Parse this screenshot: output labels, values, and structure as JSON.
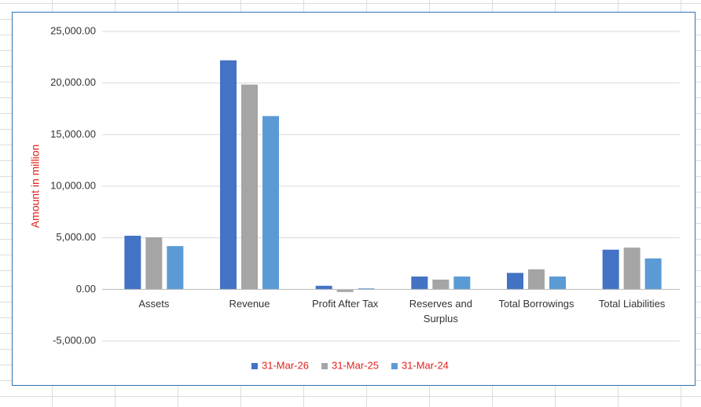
{
  "chart_data": {
    "type": "bar",
    "y_label": "Amount in million",
    "categories": [
      "Assets",
      "Revenue",
      "Profit After Tax",
      "Reserves and Surplus",
      "Total Borrowings",
      "Total Liabilities"
    ],
    "series": [
      {
        "name": "31-Mar-26",
        "color": "#4472c4",
        "values": [
          5200,
          22200,
          350,
          1250,
          1600,
          3850
        ]
      },
      {
        "name": "31-Mar-25",
        "color": "#a5a5a5",
        "values": [
          5050,
          19850,
          -250,
          950,
          1950,
          4050
        ]
      },
      {
        "name": "31-Mar-24",
        "color": "#5b9bd5",
        "values": [
          4200,
          16800,
          100,
          1250,
          1250,
          3000
        ]
      }
    ],
    "ylim": [
      -5000,
      25000
    ],
    "yticks": [
      {
        "value": -5000,
        "label": "-5,000.00"
      },
      {
        "value": 0,
        "label": "0.00"
      },
      {
        "value": 5000,
        "label": "5,000.00"
      },
      {
        "value": 10000,
        "label": "10,000.00"
      },
      {
        "value": 15000,
        "label": "15,000.00"
      },
      {
        "value": 20000,
        "label": "20,000.00"
      },
      {
        "value": 25000,
        "label": "25,000.00"
      }
    ],
    "grid": true,
    "legend": "bottom",
    "legend_text_color": "#e0201b"
  }
}
